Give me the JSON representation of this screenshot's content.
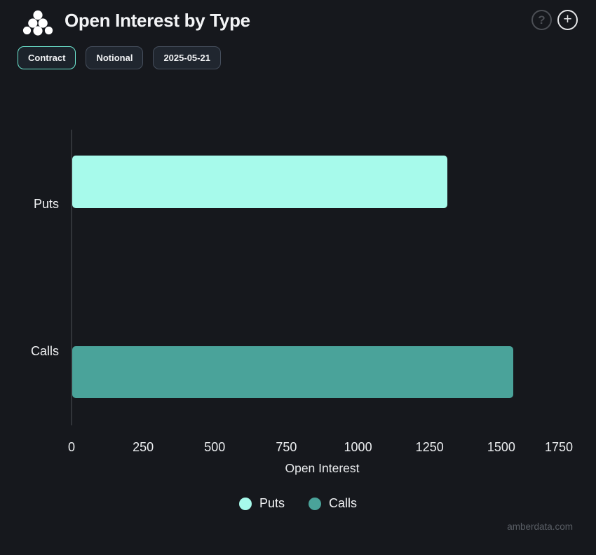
{
  "header": {
    "title": "Open Interest by Type",
    "help_glyph": "?",
    "add_glyph": "+"
  },
  "controls": {
    "contract_label": "Contract",
    "notional_label": "Notional",
    "date_label": "2025-05-21"
  },
  "chart_data": {
    "type": "bar",
    "orientation": "horizontal",
    "title": "Open Interest by Type",
    "categories": [
      "Puts",
      "Calls"
    ],
    "series": [
      {
        "name": "Puts",
        "color": "#a7faeb",
        "values": [
          1310,
          0
        ]
      },
      {
        "name": "Calls",
        "color": "#4aa39a",
        "values": [
          0,
          1540
        ]
      }
    ],
    "xlabel": "Open Interest",
    "ylabel": "",
    "xlim": [
      0,
      1750
    ],
    "xticks": [
      0,
      250,
      500,
      750,
      1000,
      1250,
      1500,
      1750
    ],
    "grid": false,
    "legend_position": "bottom"
  },
  "watermark": "amberdata.com",
  "colors": {
    "background": "#16181d",
    "accent": "#6ee8d2",
    "puts": "#a7faeb",
    "calls": "#4aa39a",
    "axis_line": "#313439"
  }
}
